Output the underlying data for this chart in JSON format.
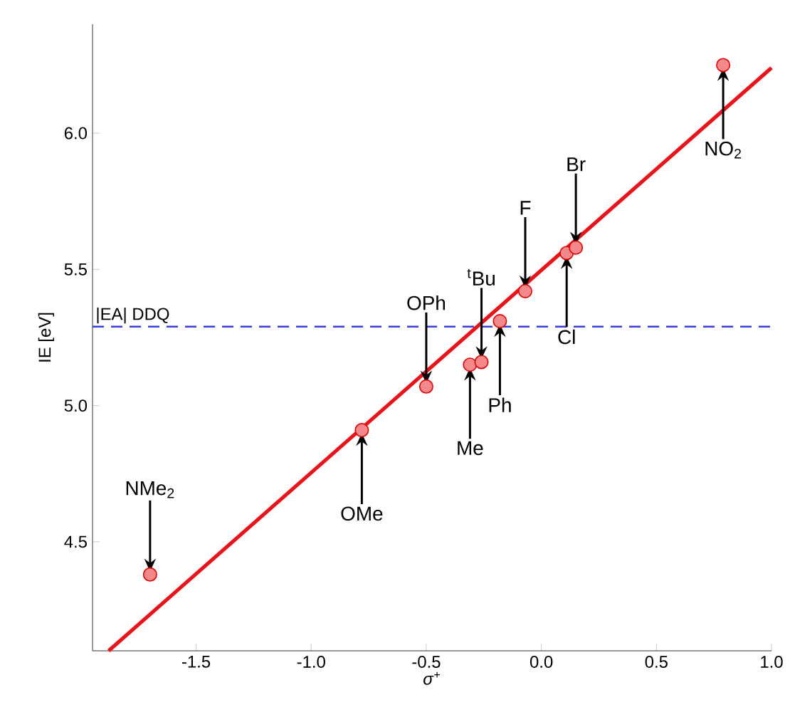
{
  "chart_data": {
    "type": "scatter",
    "xlabel": "*σ*$^{+}$",
    "ylabel": "IE [eV]",
    "xlim": [
      -1.95,
      1.0
    ],
    "ylim": [
      4.1,
      6.4
    ],
    "xticks": [
      {
        "value": -1.5,
        "label": "-1.5"
      },
      {
        "value": -1.0,
        "label": "-1.0"
      },
      {
        "value": -0.5,
        "label": "-0.5"
      },
      {
        "value": 0.0,
        "label": "0.0"
      },
      {
        "value": 0.5,
        "label": "0.5"
      },
      {
        "value": 1.0,
        "label": "1.0"
      }
    ],
    "yticks": [
      {
        "value": 4.5,
        "label": "4.5"
      },
      {
        "value": 5.0,
        "label": "5.0"
      },
      {
        "value": 5.5,
        "label": "5.5"
      },
      {
        "value": 6.0,
        "label": "6.0"
      }
    ],
    "grid": false,
    "series": [
      {
        "type": "line",
        "color": "#e8141a",
        "x": [
          -1.88,
          1.0
        ],
        "values": [
          4.1,
          6.24
        ]
      },
      {
        "marker": "circle",
        "color": "#f4898b",
        "x": [
          -1.7,
          -0.78,
          -0.5,
          -0.31,
          -0.26,
          -0.18,
          -0.07,
          0.11,
          0.15,
          0.79
        ],
        "values": [
          4.38,
          4.91,
          5.07,
          5.15,
          5.16,
          5.31,
          5.42,
          5.56,
          5.58,
          6.25
        ]
      }
    ],
    "ref_lines": [
      {
        "axis": "y",
        "value": 5.29,
        "label": "|EA| DDQ",
        "color": "#3b3bdf",
        "line_style": "dashed"
      }
    ],
    "annotations": [
      {
        "text": "NMe$_{2}$",
        "x": -1.7,
        "y": 4.38
      },
      {
        "text": "OMe",
        "x": -0.78,
        "y": 4.91
      },
      {
        "text": "OPh",
        "x": -0.5,
        "y": 5.07
      },
      {
        "text": "Me",
        "x": -0.31,
        "y": 5.15
      },
      {
        "text": "$^{t}$Bu",
        "x": -0.26,
        "y": 5.16
      },
      {
        "text": "Ph",
        "x": -0.18,
        "y": 5.31
      },
      {
        "text": "F",
        "x": -0.07,
        "y": 5.42
      },
      {
        "text": "Cl",
        "x": 0.11,
        "y": 5.56
      },
      {
        "text": "Br",
        "x": 0.15,
        "y": 5.58
      },
      {
        "text": "NO$_{2}$",
        "x": 0.79,
        "y": 6.25
      }
    ]
  }
}
